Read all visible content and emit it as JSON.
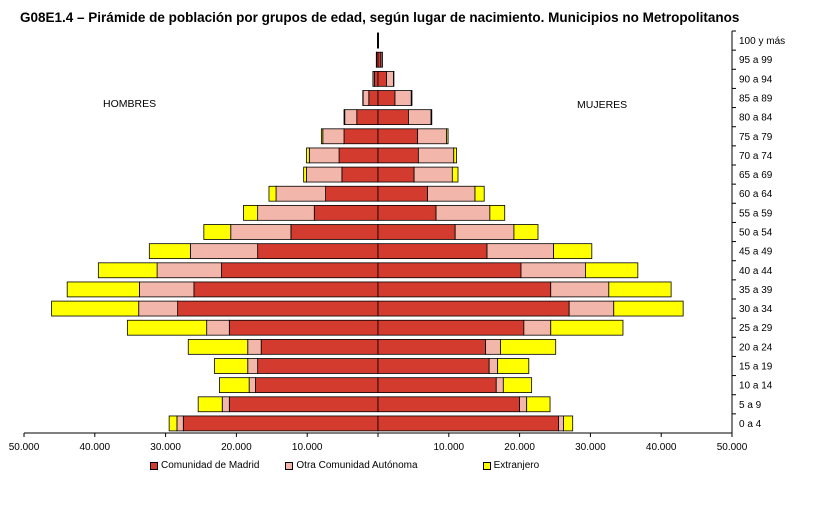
{
  "title": "G08E1.4 – Pirámide de población por grupos de edad, según lugar de nacimiento. Municipios no Metropolitanos",
  "colors": {
    "madrid": "#d43b2f",
    "otra": "#f2b6ab",
    "extranjero": "#ffff00",
    "edge": "#000000"
  },
  "chart_data": {
    "type": "bar",
    "orientation": "horizontal-pyramid",
    "left_label": "HOMBRES",
    "right_label": "MUJERES",
    "xlim": [
      -50000,
      50000
    ],
    "x_ticks": [
      -50000,
      -40000,
      -30000,
      -20000,
      -10000,
      0,
      10000,
      20000,
      30000,
      40000,
      50000
    ],
    "x_tick_labels": [
      "50.000",
      "40.000",
      "30.000",
      "20.000",
      "10.000",
      "",
      "10.000",
      "20.000",
      "30.000",
      "40.000",
      "50.000"
    ],
    "categories": [
      "0 a 4",
      "5 a 9",
      "10 a 14",
      "15 a 19",
      "20 a 24",
      "25 a 29",
      "30 a 34",
      "35 a 39",
      "40 a 44",
      "45 a 49",
      "50 a 54",
      "55 a 59",
      "60 a 64",
      "65 a 69",
      "70 a 74",
      "75 a 79",
      "80 a 84",
      "85 a 89",
      "90 a 94",
      "95 a 99",
      "100 y más"
    ],
    "legend": [
      "Comunidad de Madrid",
      "Otra Comunidad Autónoma",
      "Extranjero"
    ],
    "men": {
      "madrid": [
        27500,
        21000,
        17300,
        17000,
        16500,
        21000,
        28300,
        26000,
        22100,
        17000,
        12300,
        9000,
        7400,
        5100,
        5500,
        4800,
        3000,
        1300,
        500,
        200,
        50
      ],
      "otra": [
        900,
        1000,
        900,
        1400,
        1900,
        3200,
        5500,
        7700,
        9100,
        9500,
        8500,
        8000,
        7000,
        5000,
        4200,
        3000,
        1700,
        800,
        200,
        30,
        20
      ],
      "extranjero": [
        1100,
        3400,
        4200,
        4700,
        8400,
        11200,
        12300,
        10200,
        8300,
        5800,
        3800,
        2000,
        1000,
        400,
        400,
        200,
        100,
        50,
        20,
        10,
        10
      ]
    },
    "women": {
      "madrid": [
        25500,
        20000,
        16700,
        15700,
        15200,
        20600,
        27000,
        24400,
        20200,
        15400,
        10900,
        8200,
        7000,
        5100,
        5700,
        5600,
        4300,
        2400,
        1200,
        400,
        50
      ],
      "otra": [
        700,
        1000,
        1000,
        1200,
        2100,
        3800,
        6300,
        8200,
        9100,
        9400,
        8300,
        7600,
        6700,
        5400,
        5000,
        4100,
        3200,
        2300,
        1000,
        200,
        20
      ],
      "extranjero": [
        1300,
        3300,
        4000,
        4400,
        7800,
        10200,
        9800,
        8800,
        7400,
        5400,
        3400,
        2100,
        1300,
        800,
        400,
        200,
        100,
        100,
        50,
        20,
        10
      ]
    }
  }
}
